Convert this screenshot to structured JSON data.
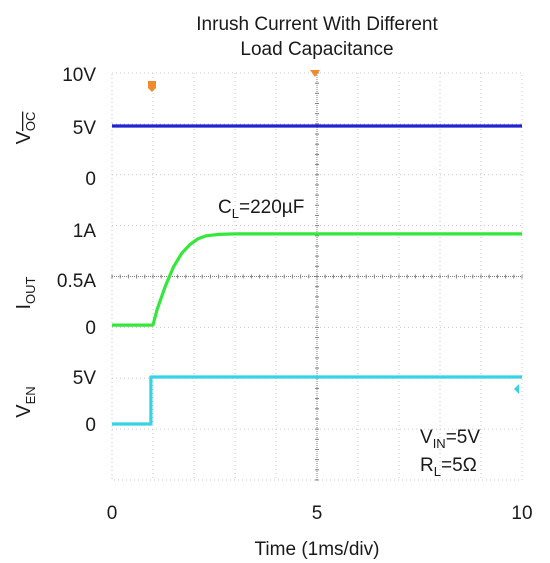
{
  "chart_data": {
    "type": "line",
    "title_lines": [
      "Inrush Current With Different",
      "Load Capacitance"
    ],
    "xlabel": "Time (1ms/div)",
    "x_ticks": [
      0,
      5,
      10
    ],
    "x_tick_labels": [
      "0",
      "5",
      "10"
    ],
    "xlim": [
      0,
      10
    ],
    "grid": true,
    "panels": [
      {
        "ylabel_main": "V",
        "ylabel_sub": "OC",
        "ylabel_sub_overline": true,
        "ylim": [
          0,
          10
        ],
        "tick_labels": [
          {
            "value": 10,
            "label": "10V"
          },
          {
            "value": 5,
            "label": "5V"
          },
          {
            "value": 0,
            "label": "0"
          }
        ],
        "series": [
          {
            "color": "#2323d2",
            "points": [
              [
                0,
                5
              ],
              [
                10,
                5
              ]
            ]
          }
        ]
      },
      {
        "ylabel_main": "I",
        "ylabel_sub": "OUT",
        "ylabel_sub_overline": false,
        "ylim": [
          0,
          1
        ],
        "tick_labels": [
          {
            "value": 1,
            "label": "1A"
          },
          {
            "value": 0.5,
            "label": "0.5A"
          },
          {
            "value": 0,
            "label": "0"
          }
        ],
        "series": [
          {
            "color": "#33e83a",
            "points": [
              [
                0,
                0.02
              ],
              [
                1.0,
                0.02
              ],
              [
                1.1,
                0.18
              ],
              [
                1.3,
                0.42
              ],
              [
                1.5,
                0.62
              ],
              [
                1.7,
                0.76
              ],
              [
                1.9,
                0.85
              ],
              [
                2.1,
                0.91
              ],
              [
                2.3,
                0.94
              ],
              [
                2.6,
                0.955
              ],
              [
                3.0,
                0.96
              ],
              [
                5.0,
                0.96
              ],
              [
                10,
                0.96
              ]
            ]
          }
        ]
      },
      {
        "ylabel_main": "V",
        "ylabel_sub": "EN",
        "ylabel_sub_overline": false,
        "ylim": [
          -1.2,
          1.2
        ],
        "tick_labels": [
          {
            "value": 1,
            "label": "5V"
          },
          {
            "value": 0,
            "label": "0"
          }
        ],
        "series": [
          {
            "color": "#35d3e6",
            "points": [
              [
                0,
                0
              ],
              [
                0.95,
                0
              ],
              [
                0.95,
                1.0
              ],
              [
                10,
                1.0
              ]
            ]
          }
        ]
      }
    ],
    "annotations": [
      {
        "main": "C",
        "sub": "L",
        "rest": "=220µF"
      },
      {
        "main": "V",
        "sub": "IN",
        "rest": "=5V"
      },
      {
        "main": "R",
        "sub": "L",
        "rest": "=5Ω"
      }
    ],
    "colors": {
      "marker_orange": "#f08b2c",
      "grid": "#c8c8c8",
      "major_line": "#808080"
    }
  }
}
